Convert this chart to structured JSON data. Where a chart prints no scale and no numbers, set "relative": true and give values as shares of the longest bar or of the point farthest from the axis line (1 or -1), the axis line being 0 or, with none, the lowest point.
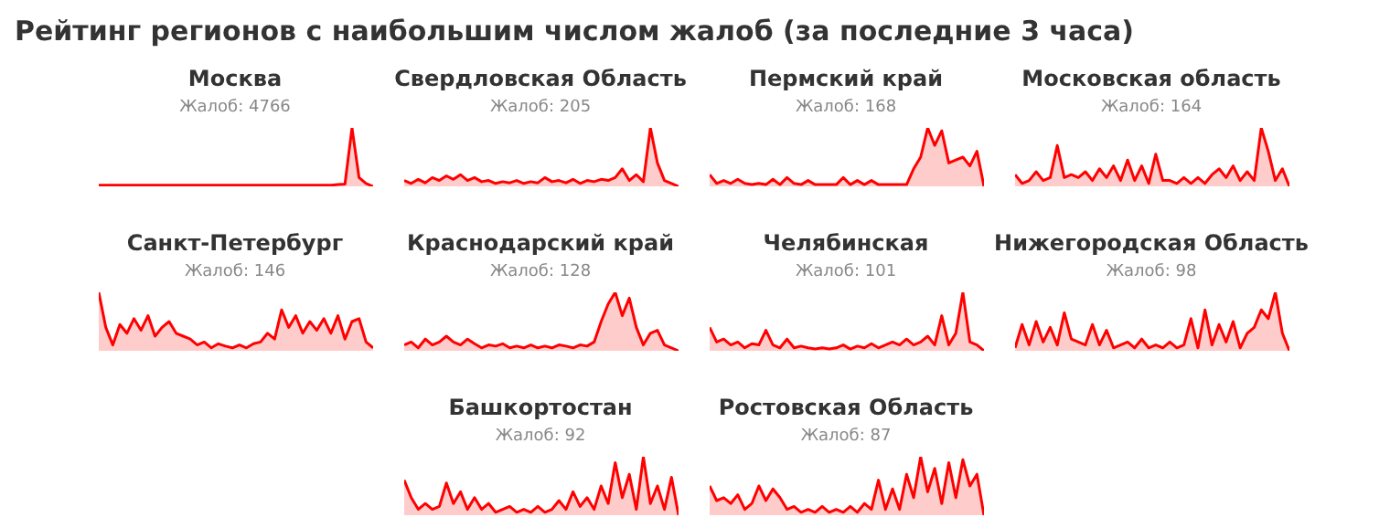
{
  "chart_data": [
    {
      "type": "other",
      "title": "Рейтинг регионов с наибольшим числом жалоб (за последние 3 часа)"
    },
    {
      "type": "area",
      "title": "Москва",
      "subtitle": "Жалоб: 4766",
      "relative": true,
      "series": [
        {
          "color": "#ff0000",
          "values": [
            0.02,
            0.02,
            0.02,
            0.02,
            0.02,
            0.02,
            0.02,
            0.02,
            0.02,
            0.02,
            0.02,
            0.02,
            0.02,
            0.02,
            0.02,
            0.02,
            0.02,
            0.02,
            0.02,
            0.02,
            0.02,
            0.02,
            0.02,
            0.02,
            0.02,
            0.02,
            0.02,
            0.02,
            0.02,
            0.02,
            0.02,
            0.02,
            0.02,
            0.02,
            0.03,
            0.04,
            1,
            0.15,
            0.05,
            0
          ]
        }
      ]
    },
    {
      "type": "area",
      "title": "Свердловская Область",
      "subtitle": "Жалоб: 205",
      "relative": true,
      "series": [
        {
          "color": "#ff0000",
          "values": [
            0.1,
            0.05,
            0.12,
            0.06,
            0.15,
            0.1,
            0.18,
            0.12,
            0.2,
            0.1,
            0.15,
            0.08,
            0.1,
            0.05,
            0.08,
            0.06,
            0.1,
            0.05,
            0.08,
            0.06,
            0.15,
            0.08,
            0.1,
            0.06,
            0.12,
            0.05,
            0.1,
            0.08,
            0.12,
            0.1,
            0.15,
            0.3,
            0.1,
            0.2,
            0.08,
            1,
            0.4,
            0.1,
            0.05,
            0
          ]
        }
      ]
    },
    {
      "type": "area",
      "title": "Пермский край",
      "subtitle": "Жалоб: 168",
      "relative": true,
      "series": [
        {
          "color": "#ff0000",
          "values": [
            0.2,
            0.05,
            0.1,
            0.05,
            0.12,
            0.05,
            0.03,
            0.05,
            0.03,
            0.12,
            0.03,
            0.15,
            0.05,
            0.03,
            0.1,
            0.03,
            0.03,
            0.03,
            0.03,
            0.15,
            0.03,
            0.1,
            0.03,
            0.1,
            0.03,
            0.03,
            0.03,
            0.03,
            0.03,
            0.3,
            0.5,
            1,
            0.7,
            0.95,
            0.4,
            0.45,
            0.5,
            0.35,
            0.6,
            0
          ]
        }
      ]
    },
    {
      "type": "area",
      "title": "Московская область",
      "subtitle": "Жалоб: 164",
      "relative": true,
      "series": [
        {
          "color": "#ff0000",
          "values": [
            0.2,
            0.05,
            0.1,
            0.25,
            0.1,
            0.15,
            0.7,
            0.15,
            0.2,
            0.15,
            0.25,
            0.1,
            0.3,
            0.15,
            0.35,
            0.1,
            0.45,
            0.1,
            0.35,
            0.05,
            0.55,
            0.1,
            0.1,
            0.05,
            0.15,
            0.05,
            0.15,
            0.05,
            0.2,
            0.3,
            0.15,
            0.35,
            0.1,
            0.25,
            0.1,
            1,
            0.6,
            0.1,
            0.3,
            0
          ]
        }
      ]
    },
    {
      "type": "area",
      "title": "Санкт-Петербург",
      "subtitle": "Жалоб: 146",
      "relative": true,
      "series": [
        {
          "color": "#ff0000",
          "values": [
            1,
            0.4,
            0.1,
            0.45,
            0.3,
            0.55,
            0.35,
            0.6,
            0.25,
            0.4,
            0.5,
            0.3,
            0.25,
            0.2,
            0.1,
            0.15,
            0.05,
            0.12,
            0.08,
            0.05,
            0.1,
            0.05,
            0.12,
            0.15,
            0.3,
            0.2,
            0.7,
            0.4,
            0.6,
            0.3,
            0.5,
            0.35,
            0.55,
            0.3,
            0.6,
            0.2,
            0.5,
            0.55,
            0.15,
            0.05
          ]
        }
      ]
    },
    {
      "type": "area",
      "title": "Краснодарский край",
      "subtitle": "Жалоб: 128",
      "relative": true,
      "series": [
        {
          "color": "#ff0000",
          "values": [
            0.1,
            0.15,
            0.05,
            0.2,
            0.1,
            0.15,
            0.25,
            0.15,
            0.1,
            0.2,
            0.12,
            0.05,
            0.1,
            0.08,
            0.12,
            0.05,
            0.08,
            0.05,
            0.1,
            0.05,
            0.08,
            0.05,
            0.1,
            0.08,
            0.05,
            0.1,
            0.08,
            0.15,
            0.5,
            0.8,
            1,
            0.6,
            0.9,
            0.4,
            0.1,
            0.3,
            0.35,
            0.1,
            0.05,
            0
          ]
        }
      ]
    },
    {
      "type": "area",
      "title": "Челябинская",
      "subtitle": "Жалоб: 101",
      "relative": true,
      "series": [
        {
          "color": "#ff0000",
          "values": [
            0.4,
            0.15,
            0.2,
            0.1,
            0.15,
            0.05,
            0.12,
            0.1,
            0.35,
            0.1,
            0.05,
            0.2,
            0.05,
            0.08,
            0.05,
            0.03,
            0.05,
            0.03,
            0.05,
            0.1,
            0.03,
            0.08,
            0.05,
            0.12,
            0.05,
            0.1,
            0.15,
            0.1,
            0.2,
            0.1,
            0.15,
            0.25,
            0.1,
            0.6,
            0.1,
            0.3,
            1,
            0.15,
            0.1,
            0
          ]
        }
      ]
    },
    {
      "type": "area",
      "title": "Нижегородская Область",
      "subtitle": "Жалоб: 98",
      "relative": true,
      "series": [
        {
          "color": "#ff0000",
          "values": [
            0.05,
            0.45,
            0.1,
            0.5,
            0.15,
            0.4,
            0.1,
            0.65,
            0.2,
            0.15,
            0.1,
            0.45,
            0.1,
            0.35,
            0.05,
            0.1,
            0.15,
            0.05,
            0.2,
            0.05,
            0.1,
            0.05,
            0.15,
            0.05,
            0.1,
            0.55,
            0.05,
            0.7,
            0.1,
            0.45,
            0.15,
            0.5,
            0.05,
            0.3,
            0.4,
            0.7,
            0.55,
            1,
            0.3,
            0
          ]
        }
      ]
    },
    {
      "type": "area",
      "title": "Башкортостан",
      "subtitle": "Жалоб: 92",
      "relative": true,
      "series": [
        {
          "color": "#ff0000",
          "values": [
            0.6,
            0.3,
            0.1,
            0.2,
            0.1,
            0.15,
            0.55,
            0.2,
            0.4,
            0.1,
            0.3,
            0.1,
            0.2,
            0.05,
            0.1,
            0.15,
            0.05,
            0.1,
            0.05,
            0.15,
            0.05,
            0.1,
            0.25,
            0.1,
            0.4,
            0.15,
            0.3,
            0.1,
            0.5,
            0.2,
            0.9,
            0.3,
            0.7,
            0.1,
            1,
            0.2,
            0.5,
            0.1,
            0.65,
            0
          ]
        }
      ]
    },
    {
      "type": "area",
      "title": "Ростовская Область",
      "subtitle": "Жалоб: 87",
      "relative": true,
      "series": [
        {
          "color": "#ff0000",
          "values": [
            0.5,
            0.25,
            0.3,
            0.2,
            0.35,
            0.1,
            0.2,
            0.5,
            0.25,
            0.45,
            0.3,
            0.1,
            0.15,
            0.05,
            0.1,
            0.05,
            0.15,
            0.05,
            0.1,
            0.05,
            0.15,
            0.05,
            0.2,
            0.1,
            0.6,
            0.1,
            0.45,
            0.1,
            0.7,
            0.3,
            1,
            0.4,
            0.8,
            0.2,
            0.9,
            0.3,
            0.95,
            0.5,
            0.7,
            0
          ]
        }
      ]
    }
  ]
}
